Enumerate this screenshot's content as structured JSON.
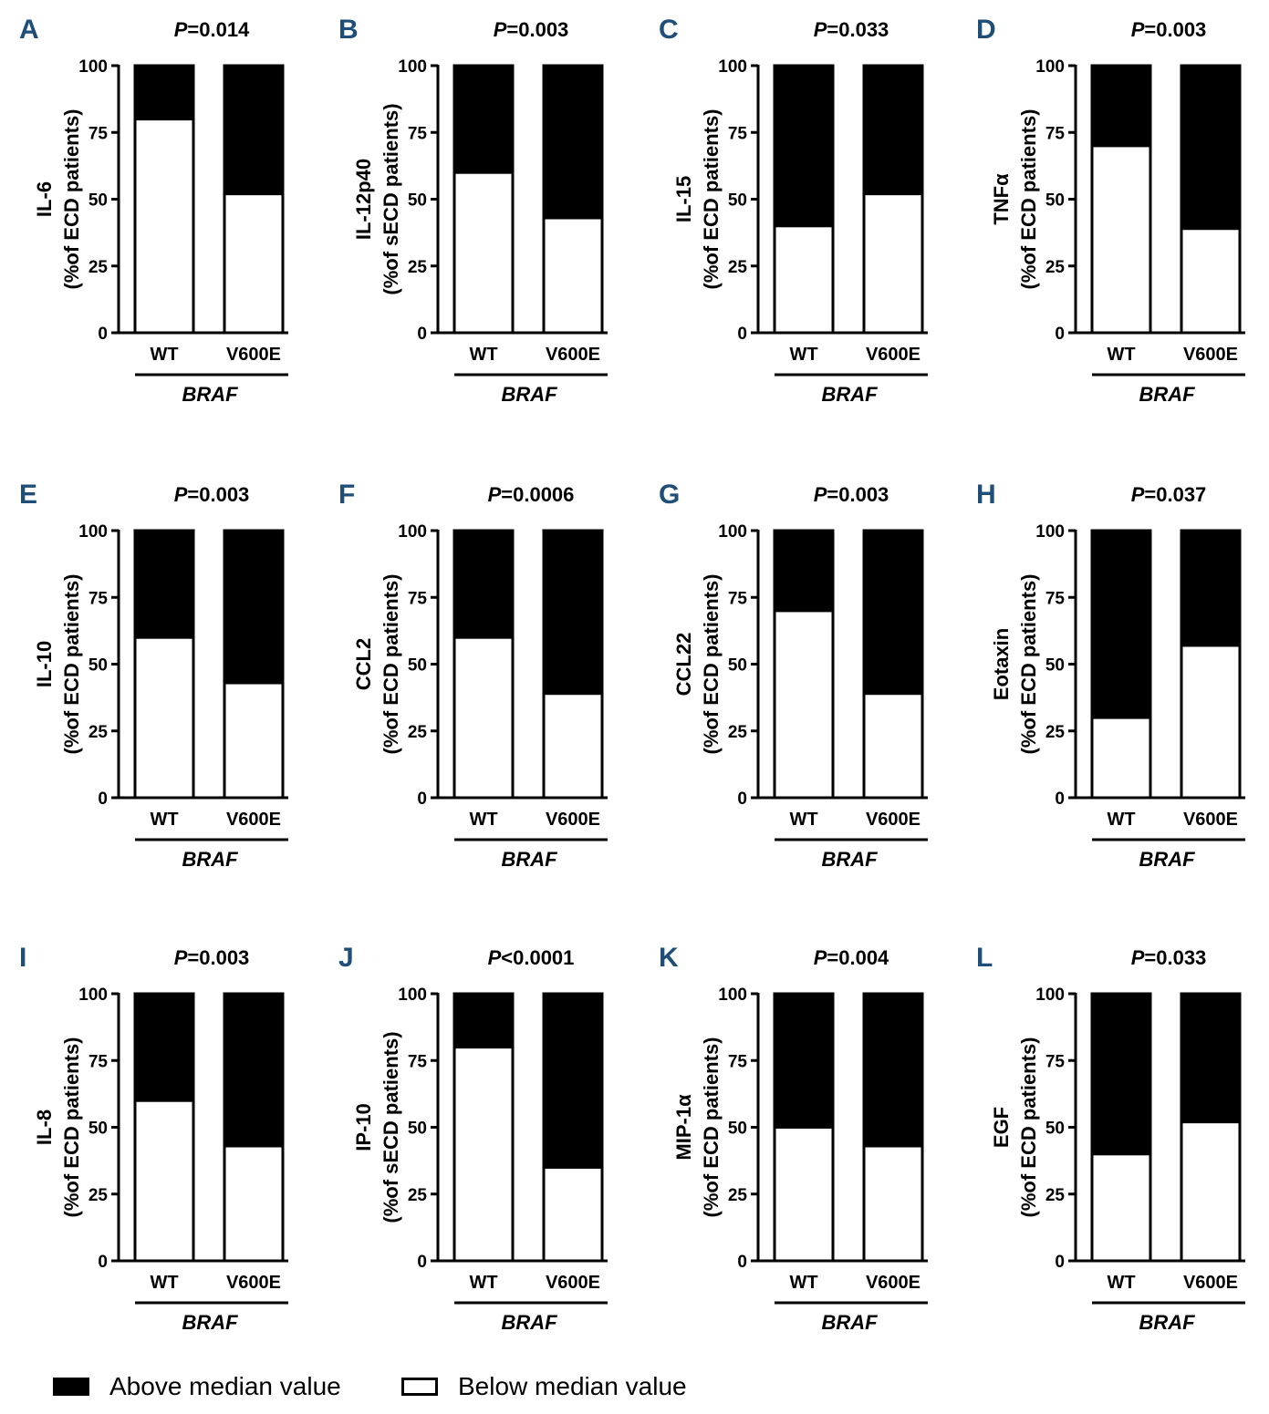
{
  "chart_data": [
    {
      "type": "bar",
      "stacked": true,
      "panel": "A",
      "pvalue": "P=0.014",
      "ylabel_top": "IL-6",
      "ylabel_bottom": "(%of ECD patients)",
      "categories": [
        "WT",
        "V600E"
      ],
      "group_label": "BRAF",
      "ylim": [
        0,
        100
      ],
      "yticks": [
        "0",
        "25",
        "50",
        "75",
        "100"
      ],
      "series": [
        {
          "name": "Below median value",
          "values": [
            80,
            52
          ]
        },
        {
          "name": "Above median value",
          "values": [
            20,
            48
          ]
        }
      ]
    },
    {
      "type": "bar",
      "stacked": true,
      "panel": "B",
      "pvalue": "P=0.003",
      "ylabel_top": "IL-12p40",
      "ylabel_bottom": "(%of sECD patients)",
      "categories": [
        "WT",
        "V600E"
      ],
      "group_label": "BRAF",
      "ylim": [
        0,
        100
      ],
      "yticks": [
        "0",
        "25",
        "50",
        "75",
        "100"
      ],
      "series": [
        {
          "name": "Below median value",
          "values": [
            60,
            43
          ]
        },
        {
          "name": "Above median value",
          "values": [
            40,
            57
          ]
        }
      ]
    },
    {
      "type": "bar",
      "stacked": true,
      "panel": "C",
      "pvalue": "P=0.033",
      "ylabel_top": "IL-15",
      "ylabel_bottom": "(%of ECD patients)",
      "categories": [
        "WT",
        "V600E"
      ],
      "group_label": "BRAF",
      "ylim": [
        0,
        100
      ],
      "yticks": [
        "0",
        "25",
        "50",
        "75",
        "100"
      ],
      "series": [
        {
          "name": "Below median value",
          "values": [
            40,
            52
          ]
        },
        {
          "name": "Above median value",
          "values": [
            60,
            48
          ]
        }
      ]
    },
    {
      "type": "bar",
      "stacked": true,
      "panel": "D",
      "pvalue": "P=0.003",
      "ylabel_top": "TNFα",
      "ylabel_bottom": "(%of ECD patients)",
      "categories": [
        "WT",
        "V600E"
      ],
      "group_label": "BRAF",
      "ylim": [
        0,
        100
      ],
      "yticks": [
        "0",
        "25",
        "50",
        "75",
        "100"
      ],
      "series": [
        {
          "name": "Below median value",
          "values": [
            70,
            39
          ]
        },
        {
          "name": "Above median value",
          "values": [
            30,
            61
          ]
        }
      ]
    },
    {
      "type": "bar",
      "stacked": true,
      "panel": "E",
      "pvalue": "P=0.003",
      "ylabel_top": "IL-10",
      "ylabel_bottom": "(%of ECD patients)",
      "categories": [
        "WT",
        "V600E"
      ],
      "group_label": "BRAF",
      "ylim": [
        0,
        100
      ],
      "yticks": [
        "0",
        "25",
        "50",
        "75",
        "100"
      ],
      "series": [
        {
          "name": "Below median value",
          "values": [
            60,
            43
          ]
        },
        {
          "name": "Above median value",
          "values": [
            40,
            57
          ]
        }
      ]
    },
    {
      "type": "bar",
      "stacked": true,
      "panel": "F",
      "pvalue": "P=0.0006",
      "ylabel_top": "CCL2",
      "ylabel_bottom": "(%of ECD patients)",
      "categories": [
        "WT",
        "V600E"
      ],
      "group_label": "BRAF",
      "ylim": [
        0,
        100
      ],
      "yticks": [
        "0",
        "25",
        "50",
        "75",
        "100"
      ],
      "series": [
        {
          "name": "Below median value",
          "values": [
            60,
            39
          ]
        },
        {
          "name": "Above median value",
          "values": [
            40,
            61
          ]
        }
      ]
    },
    {
      "type": "bar",
      "stacked": true,
      "panel": "G",
      "pvalue": "P=0.003",
      "ylabel_top": "CCL22",
      "ylabel_bottom": "(%of ECD patients)",
      "categories": [
        "WT",
        "V600E"
      ],
      "group_label": "BRAF",
      "ylim": [
        0,
        100
      ],
      "yticks": [
        "0",
        "25",
        "50",
        "75",
        "100"
      ],
      "series": [
        {
          "name": "Below median value",
          "values": [
            70,
            39
          ]
        },
        {
          "name": "Above median value",
          "values": [
            30,
            61
          ]
        }
      ]
    },
    {
      "type": "bar",
      "stacked": true,
      "panel": "H",
      "pvalue": "P=0.037",
      "ylabel_top": "Eotaxin",
      "ylabel_bottom": "(%of ECD patients)",
      "categories": [
        "WT",
        "V600E"
      ],
      "group_label": "BRAF",
      "ylim": [
        0,
        100
      ],
      "yticks": [
        "0",
        "25",
        "50",
        "75",
        "100"
      ],
      "series": [
        {
          "name": "Below median value",
          "values": [
            30,
            57
          ]
        },
        {
          "name": "Above median value",
          "values": [
            70,
            43
          ]
        }
      ]
    },
    {
      "type": "bar",
      "stacked": true,
      "panel": "I",
      "pvalue": "P=0.003",
      "ylabel_top": "IL-8",
      "ylabel_bottom": "(%of ECD patients)",
      "categories": [
        "WT",
        "V600E"
      ],
      "group_label": "BRAF",
      "ylim": [
        0,
        100
      ],
      "yticks": [
        "0",
        "25",
        "50",
        "75",
        "100"
      ],
      "series": [
        {
          "name": "Below median value",
          "values": [
            60,
            43
          ]
        },
        {
          "name": "Above median value",
          "values": [
            40,
            57
          ]
        }
      ]
    },
    {
      "type": "bar",
      "stacked": true,
      "panel": "J",
      "pvalue": "P<0.0001",
      "ylabel_top": "IP-10",
      "ylabel_bottom": "(%of sECD patients)",
      "categories": [
        "WT",
        "V600E"
      ],
      "group_label": "BRAF",
      "ylim": [
        0,
        100
      ],
      "yticks": [
        "0",
        "25",
        "50",
        "75",
        "100"
      ],
      "series": [
        {
          "name": "Below median value",
          "values": [
            80,
            35
          ]
        },
        {
          "name": "Above median value",
          "values": [
            20,
            65
          ]
        }
      ]
    },
    {
      "type": "bar",
      "stacked": true,
      "panel": "K",
      "pvalue": "P=0.004",
      "ylabel_top": "MIP-1α",
      "ylabel_bottom": "(%of ECD patients)",
      "categories": [
        "WT",
        "V600E"
      ],
      "group_label": "BRAF",
      "ylim": [
        0,
        100
      ],
      "yticks": [
        "0",
        "25",
        "50",
        "75",
        "100"
      ],
      "series": [
        {
          "name": "Below median value",
          "values": [
            50,
            43
          ]
        },
        {
          "name": "Above median value",
          "values": [
            50,
            57
          ]
        }
      ]
    },
    {
      "type": "bar",
      "stacked": true,
      "panel": "L",
      "pvalue": "P=0.033",
      "ylabel_top": "EGF",
      "ylabel_bottom": "(%of ECD patients)",
      "categories": [
        "WT",
        "V600E"
      ],
      "group_label": "BRAF",
      "ylim": [
        0,
        100
      ],
      "yticks": [
        "0",
        "25",
        "50",
        "75",
        "100"
      ],
      "series": [
        {
          "name": "Below median value",
          "values": [
            40,
            52
          ]
        },
        {
          "name": "Above median value",
          "values": [
            60,
            48
          ]
        }
      ]
    }
  ],
  "legend": {
    "above_label": "Above median value",
    "below_label": "Below median value",
    "above_color": "#000000",
    "below_color": "#ffffff"
  },
  "colors": {
    "panel_letter": "#1f4e79",
    "ink": "#000000"
  }
}
